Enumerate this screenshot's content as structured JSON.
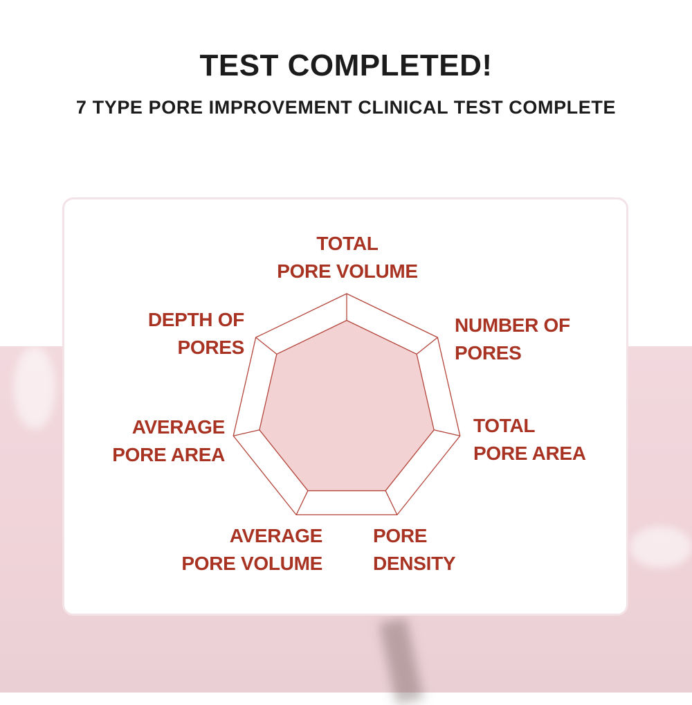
{
  "header": {
    "title": "TEST COMPLETED!",
    "subtitle": "7 TYPE PORE IMPROVEMENT CLINICAL TEST COMPLETE"
  },
  "colors": {
    "label": "#a83322",
    "fill": "#f3d2d3",
    "stroke": "#b3443a",
    "background_pink": "#f0d6db"
  },
  "chart_data": {
    "type": "radar",
    "categories": [
      {
        "line1": "TOTAL",
        "line2": "PORE VOLUME"
      },
      {
        "line1": "NUMBER OF",
        "line2": "PORES"
      },
      {
        "line1": "TOTAL",
        "line2": "PORE AREA"
      },
      {
        "line1": "PORE",
        "line2": "DENSITY"
      },
      {
        "line1": "AVERAGE",
        "line2": "PORE VOLUME"
      },
      {
        "line1": "AVERAGE",
        "line2": "PORE AREA"
      },
      {
        "line1": "DEPTH OF",
        "line2": "PORES"
      }
    ],
    "values": [
      0.77,
      0.77,
      0.77,
      0.77,
      0.77,
      0.77,
      0.77
    ],
    "range": [
      0,
      1
    ],
    "grid": true
  }
}
